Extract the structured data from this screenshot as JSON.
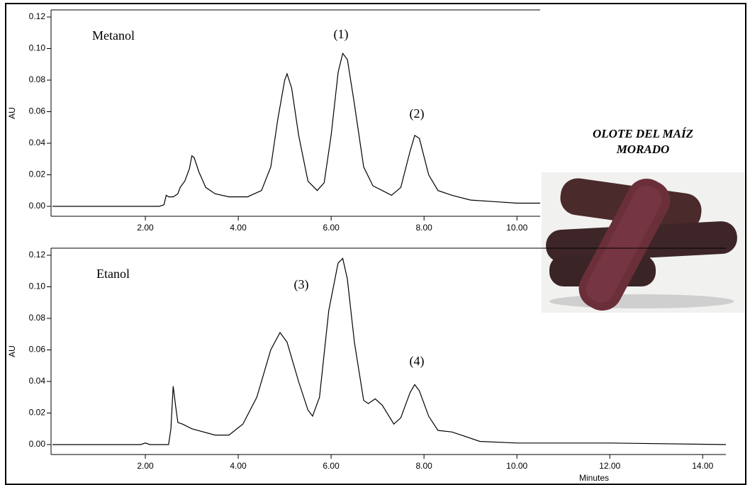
{
  "chart_data": [
    {
      "type": "line",
      "y_label": "AU",
      "annotations": [
        "Metanol",
        "(1)",
        "(2)"
      ],
      "xlim": [
        0,
        10.5
      ],
      "ylim": [
        -0.0063,
        0.1245
      ],
      "xticks": [
        {
          "value": 2,
          "label": "2.00"
        },
        {
          "value": 4,
          "label": "4.00"
        },
        {
          "value": 6,
          "label": "6.00"
        },
        {
          "value": 8,
          "label": "8.00"
        },
        {
          "value": 10,
          "label": "10.00"
        }
      ],
      "yticks": [
        {
          "value": 0,
          "label": "0.00"
        },
        {
          "value": 0.02,
          "label": "0.02"
        },
        {
          "value": 0.04,
          "label": "0.04"
        },
        {
          "value": 0.06,
          "label": "0.06"
        },
        {
          "value": 0.08,
          "label": "0.08"
        },
        {
          "value": 0.1,
          "label": "0.10"
        },
        {
          "value": 0.12,
          "label": "0.12"
        }
      ],
      "color": "#000000",
      "x": [
        0,
        2.3,
        2.4,
        2.45,
        2.5,
        2.6,
        2.7,
        2.75,
        2.85,
        2.95,
        3.0,
        3.05,
        3.15,
        3.3,
        3.5,
        3.8,
        4.2,
        4.5,
        4.7,
        4.85,
        5.0,
        5.05,
        5.15,
        5.3,
        5.5,
        5.7,
        5.85,
        6.0,
        6.15,
        6.25,
        6.35,
        6.5,
        6.7,
        6.9,
        7.1,
        7.3,
        7.5,
        7.7,
        7.8,
        7.9,
        8.1,
        8.3,
        8.6,
        9.0,
        9.5,
        10.0,
        10.5
      ],
      "values": [
        0,
        0,
        0.001,
        0.007,
        0.006,
        0.006,
        0.008,
        0.012,
        0.016,
        0.024,
        0.032,
        0.031,
        0.022,
        0.012,
        0.008,
        0.006,
        0.006,
        0.01,
        0.025,
        0.055,
        0.08,
        0.084,
        0.075,
        0.045,
        0.016,
        0.01,
        0.015,
        0.045,
        0.085,
        0.097,
        0.093,
        0.065,
        0.025,
        0.013,
        0.01,
        0.007,
        0.012,
        0.035,
        0.045,
        0.043,
        0.02,
        0.01,
        0.007,
        0.004,
        0.003,
        0.002,
        0.002
      ]
    },
    {
      "type": "line",
      "y_label": "AU",
      "x_label": "Minutes",
      "annotations": [
        "Etanol",
        "(3)",
        "(4)"
      ],
      "xlim": [
        0,
        14.5
      ],
      "ylim": [
        -0.0063,
        0.1245
      ],
      "xticks": [
        {
          "value": 2,
          "label": "2.00"
        },
        {
          "value": 4,
          "label": "4.00"
        },
        {
          "value": 6,
          "label": "6.00"
        },
        {
          "value": 8,
          "label": "8.00"
        },
        {
          "value": 10,
          "label": "10.00"
        },
        {
          "value": 12,
          "label": "12.00"
        },
        {
          "value": 14,
          "label": "14.00"
        }
      ],
      "yticks": [
        {
          "value": 0,
          "label": "0.00"
        },
        {
          "value": 0.02,
          "label": "0.02"
        },
        {
          "value": 0.04,
          "label": "0.04"
        },
        {
          "value": 0.06,
          "label": "0.06"
        },
        {
          "value": 0.08,
          "label": "0.08"
        },
        {
          "value": 0.1,
          "label": "0.10"
        },
        {
          "value": 0.12,
          "label": "0.12"
        }
      ],
      "color": "#000000",
      "x": [
        0,
        1.9,
        2.0,
        2.1,
        2.5,
        2.55,
        2.6,
        2.65,
        2.7,
        2.8,
        3.0,
        3.5,
        3.8,
        4.1,
        4.4,
        4.7,
        4.9,
        5.05,
        5.3,
        5.5,
        5.6,
        5.75,
        5.95,
        6.15,
        6.25,
        6.35,
        6.5,
        6.7,
        6.8,
        6.95,
        7.1,
        7.35,
        7.5,
        7.7,
        7.8,
        7.9,
        8.1,
        8.3,
        8.6,
        8.8,
        9.2,
        10,
        12,
        14.5
      ],
      "values": [
        0,
        0,
        0.001,
        0,
        0,
        0.01,
        0.037,
        0.025,
        0.014,
        0.013,
        0.01,
        0.006,
        0.006,
        0.013,
        0.03,
        0.06,
        0.071,
        0.065,
        0.04,
        0.022,
        0.018,
        0.03,
        0.085,
        0.115,
        0.118,
        0.105,
        0.065,
        0.028,
        0.026,
        0.029,
        0.025,
        0.013,
        0.017,
        0.033,
        0.038,
        0.034,
        0.018,
        0.009,
        0.008,
        0.006,
        0.002,
        0.001,
        0.001,
        0
      ]
    }
  ],
  "image_caption": [
    "OLOTE  DEL MAÍZ",
    "MORADO"
  ]
}
